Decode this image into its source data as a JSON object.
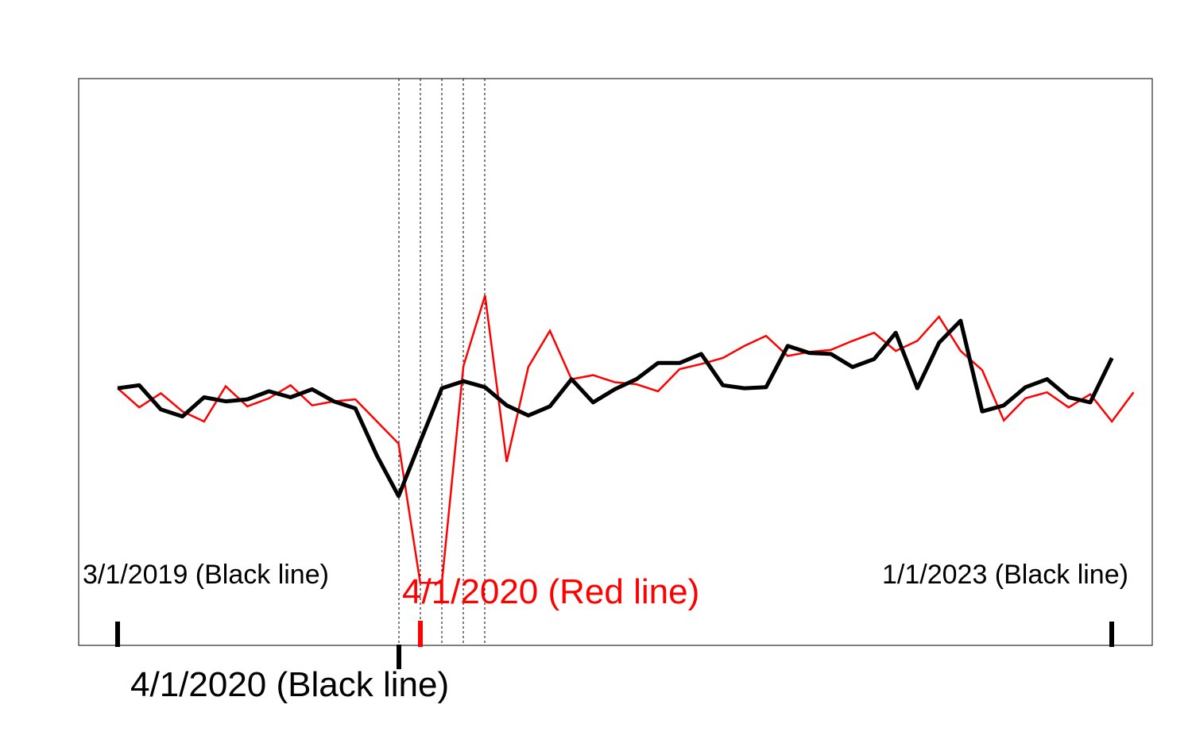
{
  "chart_data": {
    "type": "line",
    "title": "",
    "xlabel": "",
    "ylabel": "",
    "grid": false,
    "colors": {
      "black_series": "#000000",
      "red_series": "#ff0000",
      "frame": "#000000"
    },
    "series": [
      {
        "color": "#000000",
        "values": [
          33,
          36,
          12,
          5,
          24,
          20,
          22,
          30,
          24,
          32,
          20,
          13,
          -34,
          -74,
          -20,
          33,
          40,
          34,
          16,
          6,
          15,
          42,
          19,
          32,
          42,
          58,
          58,
          67,
          36,
          33,
          34,
          75,
          68,
          67,
          54,
          62,
          88,
          33,
          78,
          100,
          10,
          16,
          34,
          42,
          24,
          19,
          63
        ]
      },
      {
        "color": "#ff0000",
        "values": [
          33,
          14,
          28,
          10,
          0,
          35,
          15,
          23,
          36,
          16,
          20,
          22,
          0,
          -22,
          -160,
          -160,
          55,
          125,
          -40,
          54,
          90,
          42,
          46,
          39,
          37,
          30,
          52,
          57,
          63,
          75,
          85,
          65,
          69,
          71,
          80,
          88,
          70,
          80,
          104,
          70,
          51,
          1,
          23,
          29,
          14,
          27,
          0,
          29
        ]
      }
    ],
    "annotations": {
      "black_start": "3/1/2019 (Black line)",
      "black_end": "1/1/2023 (Black line)",
      "black_mid": "4/1/2020 (Black line)",
      "red_mid": "4/1/2020 (Red line)"
    }
  }
}
